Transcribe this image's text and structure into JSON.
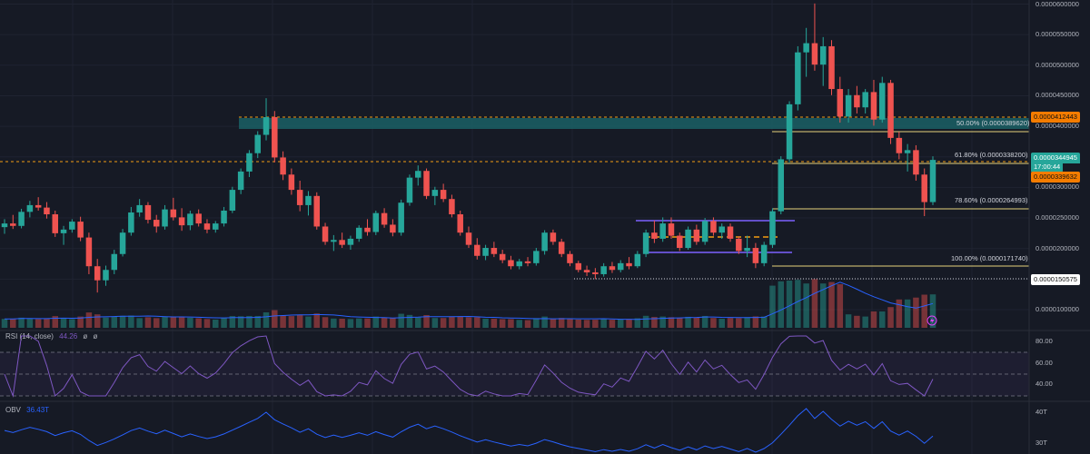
{
  "colors": {
    "background": "#161a25",
    "grid": "#1f2331",
    "candle_up": "#26a69a",
    "candle_down": "#ef5350",
    "volume_ma": "#2962ff",
    "rsi_line": "#7e57c2",
    "obv_line": "#2962ff",
    "zone": "#1b6a6e",
    "fib_line": "#e6d37a",
    "range_box": "#7b61ff",
    "dashed_orange": "#f39c12"
  },
  "price_axis": {
    "ticks": [
      "0.0000600000",
      "0.0000550000",
      "0.0000500000",
      "0.0000450000",
      "0.0000400000",
      "0.0000300000",
      "0.0000250000",
      "0.0000200000",
      "0.0000100000"
    ]
  },
  "price_tags": {
    "zone_top": "0.0000412443",
    "current": "0.0000344945",
    "countdown": "17:00:44",
    "secondary": "0.0000339632",
    "low_ref": "0.0000150575"
  },
  "fib_levels": [
    {
      "label": "50.00% (0.0000389620)"
    },
    {
      "label": "61.80% (0.0000338200)"
    },
    {
      "label": "78.60% (0.0000264993)"
    },
    {
      "label": "100.00% (0.0000171740)"
    }
  ],
  "rsi": {
    "label": "RSI (14, close)",
    "value": "44.26",
    "extra1": "ø",
    "extra2": "ø",
    "ticks": [
      "80.00",
      "60.00",
      "40.00"
    ]
  },
  "obv": {
    "label": "OBV",
    "value": "36.43T",
    "ticks": [
      "40T",
      "30T"
    ]
  },
  "chart_data": {
    "type": "candlestick",
    "candles": [
      [
        2.35e-05,
        2.48e-05,
        2.24e-05,
        2.41e-05
      ],
      [
        2.41e-05,
        2.55e-05,
        2.32e-05,
        2.37e-05
      ],
      [
        2.37e-05,
        2.65e-05,
        2.33e-05,
        2.6e-05
      ],
      [
        2.6e-05,
        2.78e-05,
        2.51e-05,
        2.71e-05
      ],
      [
        2.71e-05,
        2.84e-05,
        2.62e-05,
        2.67e-05
      ],
      [
        2.67e-05,
        2.76e-05,
        2.49e-05,
        2.56e-05
      ],
      [
        2.56e-05,
        2.62e-05,
        2.19e-05,
        2.25e-05
      ],
      [
        2.25e-05,
        2.37e-05,
        2.06e-05,
        2.31e-05
      ],
      [
        2.31e-05,
        2.48e-05,
        2.26e-05,
        2.44e-05
      ],
      [
        2.44e-05,
        2.52e-05,
        2.12e-05,
        2.18e-05
      ],
      [
        2.18e-05,
        2.26e-05,
        1.58e-05,
        1.71e-05
      ],
      [
        1.71e-05,
        1.83e-05,
        1.28e-05,
        1.48e-05
      ],
      [
        1.48e-05,
        1.72e-05,
        1.39e-05,
        1.65e-05
      ],
      [
        1.65e-05,
        1.98e-05,
        1.58e-05,
        1.91e-05
      ],
      [
        1.91e-05,
        2.32e-05,
        1.87e-05,
        2.26e-05
      ],
      [
        2.26e-05,
        2.68e-05,
        2.21e-05,
        2.59e-05
      ],
      [
        2.59e-05,
        2.81e-05,
        2.52e-05,
        2.71e-05
      ],
      [
        2.71e-05,
        2.76e-05,
        2.41e-05,
        2.47e-05
      ],
      [
        2.47e-05,
        2.55e-05,
        2.26e-05,
        2.36e-05
      ],
      [
        2.36e-05,
        2.71e-05,
        2.31e-05,
        2.64e-05
      ],
      [
        2.64e-05,
        2.83e-05,
        2.46e-05,
        2.51e-05
      ],
      [
        2.51e-05,
        2.66e-05,
        2.29e-05,
        2.38e-05
      ],
      [
        2.38e-05,
        2.62e-05,
        2.3e-05,
        2.57e-05
      ],
      [
        2.57e-05,
        2.64e-05,
        2.36e-05,
        2.41e-05
      ],
      [
        2.41e-05,
        2.48e-05,
        2.25e-05,
        2.31e-05
      ],
      [
        2.31e-05,
        2.45e-05,
        2.26e-05,
        2.41e-05
      ],
      [
        2.41e-05,
        2.68e-05,
        2.36e-05,
        2.62e-05
      ],
      [
        2.62e-05,
        3.01e-05,
        2.58e-05,
        2.96e-05
      ],
      [
        2.96e-05,
        3.31e-05,
        2.89e-05,
        3.26e-05
      ],
      [
        3.26e-05,
        3.61e-05,
        3.17e-05,
        3.56e-05
      ],
      [
        3.56e-05,
        3.92e-05,
        3.48e-05,
        3.86e-05
      ],
      [
        3.86e-05,
        4.46e-05,
        3.77e-05,
        4.15e-05
      ],
      [
        4.15e-05,
        4.25e-05,
        3.41e-05,
        3.49e-05
      ],
      [
        3.49e-05,
        3.59e-05,
        3.12e-05,
        3.21e-05
      ],
      [
        3.21e-05,
        3.31e-05,
        2.88e-05,
        2.96e-05
      ],
      [
        2.96e-05,
        3.11e-05,
        2.61e-05,
        2.71e-05
      ],
      [
        2.71e-05,
        2.94e-05,
        2.54e-05,
        2.86e-05
      ],
      [
        2.86e-05,
        2.92e-05,
        2.31e-05,
        2.36e-05
      ],
      [
        2.36e-05,
        2.42e-05,
        2.06e-05,
        2.11e-05
      ],
      [
        2.11e-05,
        2.22e-05,
        1.96e-05,
        2.14e-05
      ],
      [
        2.14e-05,
        2.26e-05,
        2.01e-05,
        2.06e-05
      ],
      [
        2.06e-05,
        2.21e-05,
        1.98e-05,
        2.16e-05
      ],
      [
        2.16e-05,
        2.38e-05,
        2.11e-05,
        2.34e-05
      ],
      [
        2.34e-05,
        2.48e-05,
        2.21e-05,
        2.27e-05
      ],
      [
        2.27e-05,
        2.62e-05,
        2.22e-05,
        2.58e-05
      ],
      [
        2.58e-05,
        2.66e-05,
        2.34e-05,
        2.39e-05
      ],
      [
        2.39e-05,
        2.48e-05,
        2.2e-05,
        2.26e-05
      ],
      [
        2.26e-05,
        2.8e-05,
        2.21e-05,
        2.75e-05
      ],
      [
        2.75e-05,
        3.21e-05,
        2.7e-05,
        3.16e-05
      ],
      [
        3.16e-05,
        3.36e-05,
        3.03e-05,
        3.27e-05
      ],
      [
        3.27e-05,
        3.31e-05,
        2.81e-05,
        2.86e-05
      ],
      [
        2.86e-05,
        3.01e-05,
        2.71e-05,
        2.96e-05
      ],
      [
        2.96e-05,
        3.06e-05,
        2.76e-05,
        2.81e-05
      ],
      [
        2.81e-05,
        2.88e-05,
        2.51e-05,
        2.56e-05
      ],
      [
        2.56e-05,
        2.62e-05,
        2.21e-05,
        2.26e-05
      ],
      [
        2.26e-05,
        2.36e-05,
        2.01e-05,
        2.06e-05
      ],
      [
        2.06e-05,
        2.17e-05,
        1.82e-05,
        1.88e-05
      ],
      [
        1.88e-05,
        2.06e-05,
        1.81e-05,
        2.01e-05
      ],
      [
        2.01e-05,
        2.11e-05,
        1.86e-05,
        1.91e-05
      ],
      [
        1.91e-05,
        1.98e-05,
        1.76e-05,
        1.81e-05
      ],
      [
        1.81e-05,
        1.88e-05,
        1.66e-05,
        1.71e-05
      ],
      [
        1.71e-05,
        1.83e-05,
        1.66e-05,
        1.79e-05
      ],
      [
        1.79e-05,
        1.86e-05,
        1.71e-05,
        1.76e-05
      ],
      [
        1.76e-05,
        2.01e-05,
        1.72e-05,
        1.96e-05
      ],
      [
        1.96e-05,
        2.3e-05,
        1.9e-05,
        2.26e-05
      ],
      [
        2.26e-05,
        2.31e-05,
        2.06e-05,
        2.11e-05
      ],
      [
        2.11e-05,
        2.16e-05,
        1.86e-05,
        1.91e-05
      ],
      [
        1.91e-05,
        1.96e-05,
        1.71e-05,
        1.76e-05
      ],
      [
        1.76e-05,
        1.8e-05,
        1.61e-05,
        1.65e-05
      ],
      [
        1.65e-05,
        1.72e-05,
        1.55e-05,
        1.61e-05
      ],
      [
        1.61e-05,
        1.68e-05,
        1.5e-05,
        1.58e-05
      ],
      [
        1.58e-05,
        1.76e-05,
        1.54e-05,
        1.71e-05
      ],
      [
        1.71e-05,
        1.78e-05,
        1.6e-05,
        1.65e-05
      ],
      [
        1.65e-05,
        1.81e-05,
        1.61e-05,
        1.76e-05
      ],
      [
        1.76e-05,
        1.86e-05,
        1.66e-05,
        1.71e-05
      ],
      [
        1.71e-05,
        1.96e-05,
        1.68e-05,
        1.91e-05
      ],
      [
        1.91e-05,
        2.31e-05,
        1.86e-05,
        2.26e-05
      ],
      [
        2.26e-05,
        2.46e-05,
        2.09e-05,
        2.16e-05
      ],
      [
        2.16e-05,
        2.51e-05,
        2.11e-05,
        2.41e-05
      ],
      [
        2.41e-05,
        2.51e-05,
        2.16e-05,
        2.21e-05
      ],
      [
        2.21e-05,
        2.26e-05,
        1.96e-05,
        2.01e-05
      ],
      [
        2.01e-05,
        2.36e-05,
        1.98e-05,
        2.31e-05
      ],
      [
        2.31e-05,
        2.39e-05,
        2.06e-05,
        2.11e-05
      ],
      [
        2.11e-05,
        2.5e-05,
        2.06e-05,
        2.45e-05
      ],
      [
        2.45e-05,
        2.51e-05,
        2.21e-05,
        2.26e-05
      ],
      [
        2.26e-05,
        2.41e-05,
        2.16e-05,
        2.36e-05
      ],
      [
        2.36e-05,
        2.41e-05,
        2.11e-05,
        2.16e-05
      ],
      [
        2.16e-05,
        2.2e-05,
        1.91e-05,
        1.96e-05
      ],
      [
        1.96e-05,
        2.21e-05,
        1.86e-05,
        2.01e-05
      ],
      [
        2.01e-05,
        2.09e-05,
        1.68e-05,
        1.76e-05
      ],
      [
        1.76e-05,
        2.11e-05,
        1.71e-05,
        2.06e-05
      ],
      [
        2.06e-05,
        2.66e-05,
        2.01e-05,
        2.61e-05
      ],
      [
        2.61e-05,
        3.51e-05,
        2.56e-05,
        3.46e-05
      ],
      [
        3.46e-05,
        4.41e-05,
        3.41e-05,
        4.36e-05
      ],
      [
        4.36e-05,
        5.31e-05,
        4.26e-05,
        5.21e-05
      ],
      [
        5.21e-05,
        5.61e-05,
        4.81e-05,
        5.36e-05
      ],
      [
        5.36e-05,
        6.01e-05,
        4.91e-05,
        5.01e-05
      ],
      [
        5.01e-05,
        5.46e-05,
        4.66e-05,
        5.31e-05
      ],
      [
        5.31e-05,
        5.41e-05,
        4.51e-05,
        4.61e-05
      ],
      [
        4.61e-05,
        4.81e-05,
        4.06e-05,
        4.16e-05
      ],
      [
        4.16e-05,
        4.61e-05,
        4.06e-05,
        4.51e-05
      ],
      [
        4.51e-05,
        4.66e-05,
        4.21e-05,
        4.31e-05
      ],
      [
        4.31e-05,
        4.61e-05,
        4.21e-05,
        4.56e-05
      ],
      [
        4.56e-05,
        4.76e-05,
        4.01e-05,
        4.11e-05
      ],
      [
        4.11e-05,
        4.81e-05,
        4.06e-05,
        4.71e-05
      ],
      [
        4.71e-05,
        4.76e-05,
        3.71e-05,
        3.81e-05
      ],
      [
        3.81e-05,
        3.91e-05,
        3.46e-05,
        3.56e-05
      ],
      [
        3.56e-05,
        3.71e-05,
        3.26e-05,
        3.61e-05
      ],
      [
        3.61e-05,
        3.69e-05,
        3.11e-05,
        3.21e-05
      ],
      [
        3.21e-05,
        3.31e-05,
        2.53e-05,
        2.76e-05
      ],
      [
        2.76e-05,
        3.51e-05,
        2.71e-05,
        3.45e-05
      ]
    ]
  }
}
